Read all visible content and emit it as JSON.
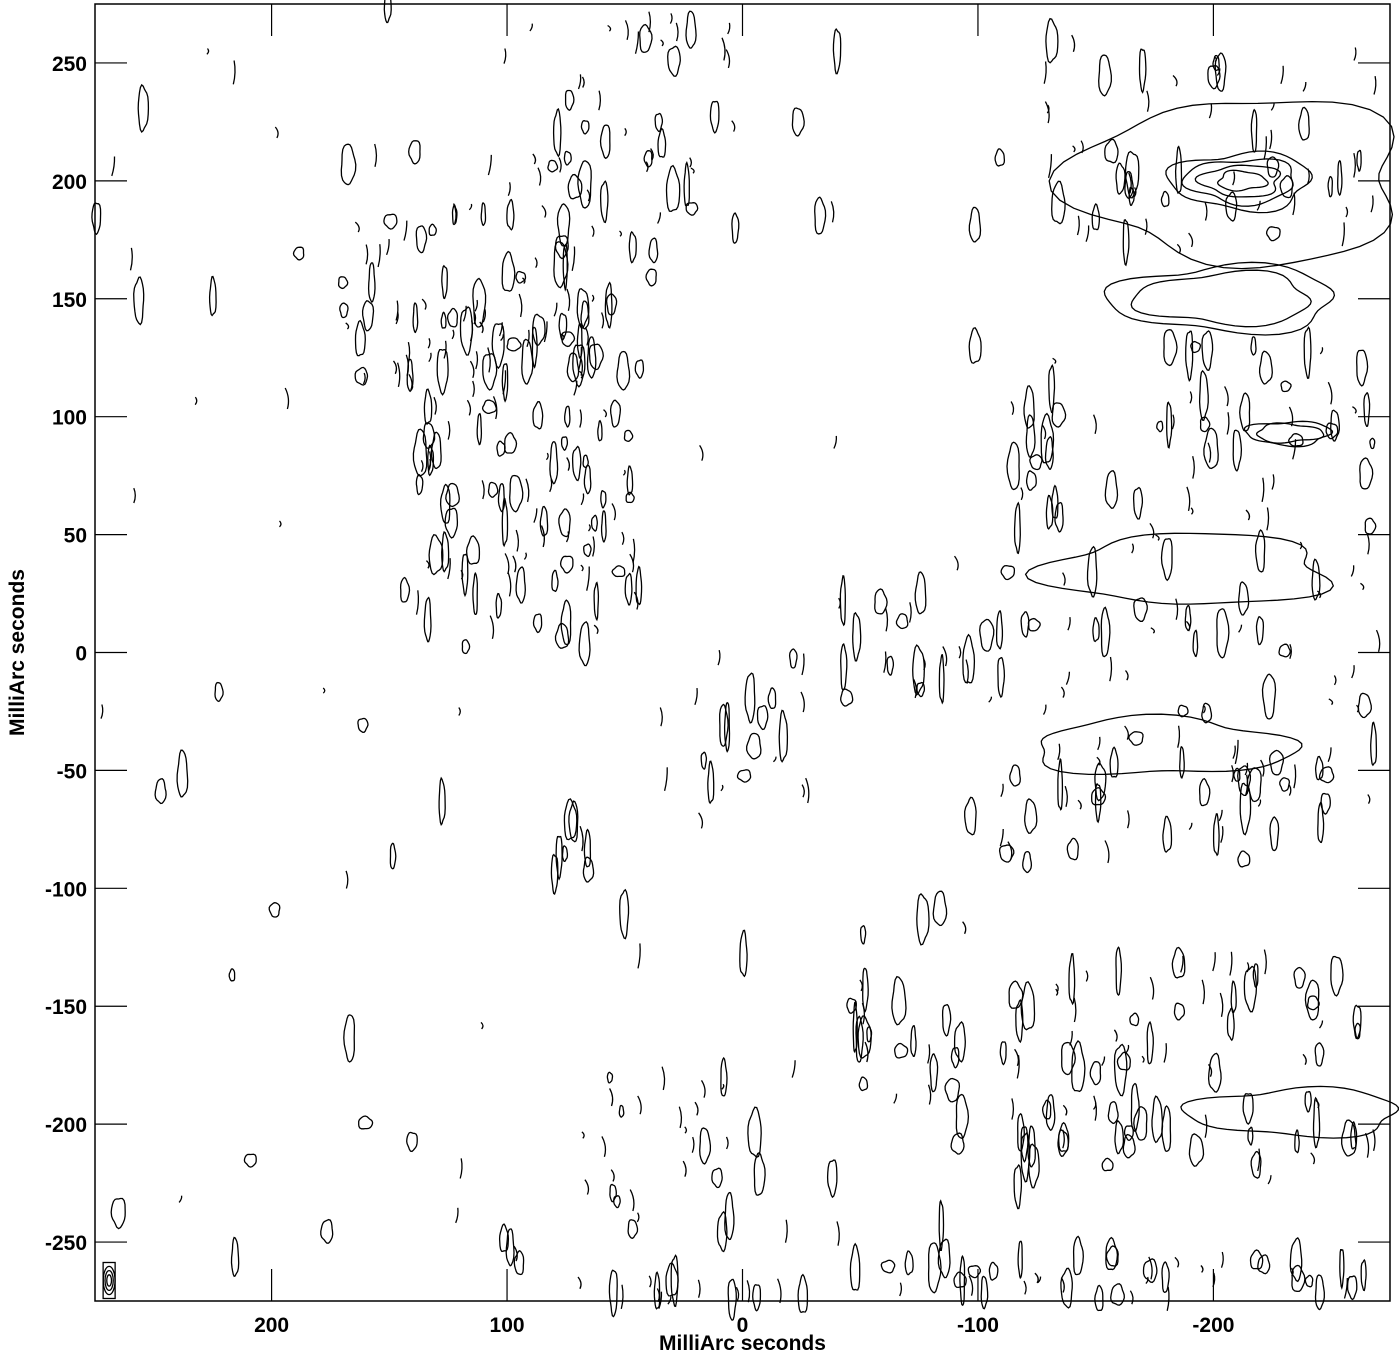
{
  "chart_data": {
    "type": "contour",
    "xlabel": "MilliArc seconds",
    "ylabel": "MilliArc seconds",
    "xlim": [
      275,
      -275
    ],
    "ylim": [
      -275,
      275
    ],
    "x_ticks": [
      200,
      100,
      0,
      -100,
      -200
    ],
    "y_ticks": [
      250,
      200,
      150,
      100,
      50,
      0,
      -50,
      -100,
      -150,
      -200,
      -250
    ],
    "x_tick_labels": [
      "200",
      "100",
      "0",
      "-100",
      "-200"
    ],
    "y_tick_labels": [
      "250",
      "200",
      "150",
      "100",
      "50",
      "0",
      "-50",
      "-100",
      "-150",
      "-200",
      "-250"
    ],
    "beam": {
      "x": 269,
      "y": -268,
      "major": 6,
      "minor": 2.5
    },
    "features": [
      {
        "kind": "ring",
        "x": -212,
        "y": 200,
        "rx": 30,
        "ry": 12,
        "levels": 4
      },
      {
        "kind": "ring",
        "x": -212,
        "y": 200,
        "rx": 70,
        "ry": 35,
        "levels": 1
      },
      {
        "kind": "ring",
        "x": -205,
        "y": 150,
        "rx": 48,
        "ry": 14,
        "levels": 2
      },
      {
        "kind": "ring",
        "x": -232,
        "y": 93,
        "rx": 18,
        "ry": 5,
        "levels": 2
      },
      {
        "kind": "ring",
        "x": -190,
        "y": 35,
        "rx": 60,
        "ry": 15,
        "levels": 1
      },
      {
        "kind": "ring",
        "x": -178,
        "y": -40,
        "rx": 55,
        "ry": 12,
        "levels": 1
      },
      {
        "kind": "ring",
        "x": -235,
        "y": -195,
        "rx": 45,
        "ry": 10,
        "levels": 1
      }
    ],
    "blob_regions": [
      {
        "x0": -125,
        "x1": -270,
        "y0": 170,
        "y1": 260,
        "count": 60
      },
      {
        "x0": 170,
        "x1": 50,
        "y0": 100,
        "y1": 220,
        "count": 70
      },
      {
        "x0": 145,
        "x1": 40,
        "y0": 0,
        "y1": 150,
        "count": 120
      },
      {
        "x0": 80,
        "x1": 0,
        "y0": 170,
        "y1": 270,
        "count": 40
      },
      {
        "x0": -110,
        "x1": -270,
        "y0": -60,
        "y1": 130,
        "count": 120
      },
      {
        "x0": -110,
        "x1": -270,
        "y0": -90,
        "y1": -40,
        "count": 40
      },
      {
        "x0": -40,
        "x1": -110,
        "y0": -20,
        "y1": 30,
        "count": 25
      },
      {
        "x0": -110,
        "x1": -270,
        "y0": -180,
        "y1": -130,
        "count": 50
      },
      {
        "x0": -110,
        "x1": -270,
        "y0": -230,
        "y1": -190,
        "count": 40
      },
      {
        "x0": -40,
        "x1": -100,
        "y0": -190,
        "y1": -140,
        "count": 20
      },
      {
        "x0": 80,
        "x1": -10,
        "y0": -240,
        "y1": -180,
        "count": 25
      },
      {
        "x0": 20,
        "x1": -30,
        "y0": -60,
        "y1": 0,
        "count": 18
      },
      {
        "x0": 80,
        "x1": 60,
        "y0": -100,
        "y1": -70,
        "count": 8
      },
      {
        "x0": -80,
        "x1": -270,
        "y0": -275,
        "y1": -255,
        "count": 40
      },
      {
        "x0": 60,
        "x1": -30,
        "y0": -275,
        "y1": -265,
        "count": 15
      },
      {
        "x0": 275,
        "x1": 160,
        "y0": -275,
        "y1": 275,
        "count": 30
      },
      {
        "x0": 160,
        "x1": -110,
        "y0": -275,
        "y1": 275,
        "count": 70
      }
    ]
  }
}
